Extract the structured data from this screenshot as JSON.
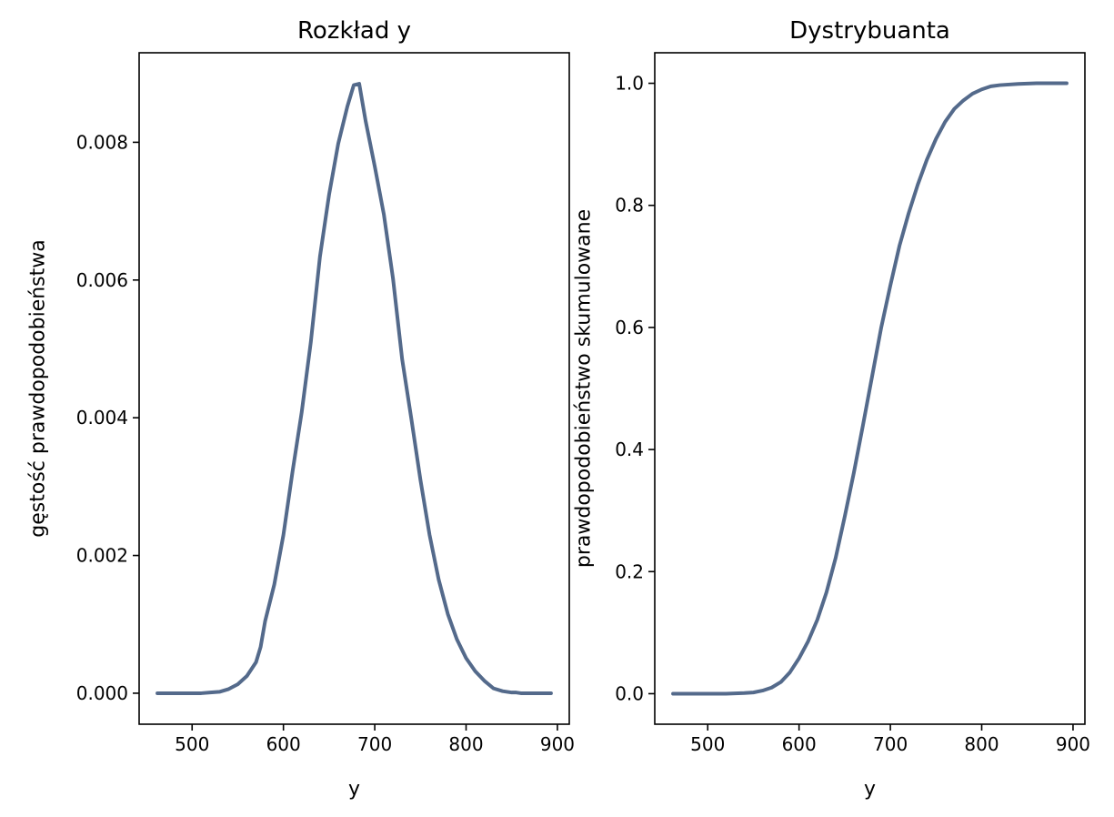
{
  "chart_data": [
    {
      "type": "line",
      "title": "Rozkład y",
      "xlabel": "y",
      "ylabel": "gęstość prawdopodobieństwa",
      "xlim": [
        442,
        913
      ],
      "ylim": [
        -0.00045,
        0.0093
      ],
      "xticks": [
        500,
        600,
        700,
        800,
        900
      ],
      "xtick_labels": [
        "500",
        "600",
        "700",
        "800",
        "900"
      ],
      "yticks": [
        0,
        0.002,
        0.004,
        0.006,
        0.008
      ],
      "ytick_labels": [
        "0.000",
        "0.002",
        "0.004",
        "0.006",
        "0.008"
      ],
      "grid": false,
      "line_color": "#546a8b",
      "x": [
        462,
        470,
        480,
        490,
        500,
        510,
        520,
        530,
        540,
        550,
        560,
        570,
        575,
        580,
        590,
        600,
        610,
        620,
        630,
        640,
        650,
        660,
        670,
        677,
        683,
        690,
        700,
        710,
        720,
        730,
        740,
        750,
        760,
        770,
        780,
        790,
        800,
        810,
        820,
        830,
        840,
        850,
        855,
        860,
        870,
        880,
        893
      ],
      "y": [
        0.0,
        0.0,
        0.0,
        0.0,
        0.0,
        0.0,
        1e-05,
        2e-05,
        6e-05,
        0.00013,
        0.00025,
        0.00045,
        0.00067,
        0.00105,
        0.00158,
        0.0023,
        0.00322,
        0.00408,
        0.0051,
        0.00634,
        0.00724,
        0.00798,
        0.00852,
        0.00883,
        0.00885,
        0.00831,
        0.00765,
        0.00695,
        0.00602,
        0.00485,
        0.00399,
        0.0031,
        0.0023,
        0.00165,
        0.00115,
        0.00078,
        0.00051,
        0.00032,
        0.00018,
        7e-05,
        3e-05,
        1e-05,
        1e-05,
        0.0,
        0.0,
        0.0,
        0.0
      ]
    },
    {
      "type": "line",
      "title": "Dystrybuanta",
      "xlabel": "y",
      "ylabel": "prawdopodobieństwo skumulowane",
      "xlim": [
        442,
        913
      ],
      "ylim": [
        -0.05,
        1.05
      ],
      "xticks": [
        500,
        600,
        700,
        800,
        900
      ],
      "xtick_labels": [
        "500",
        "600",
        "700",
        "800",
        "900"
      ],
      "yticks": [
        0,
        0.2,
        0.4,
        0.6,
        0.8,
        1.0
      ],
      "ytick_labels": [
        "0.0",
        "0.2",
        "0.4",
        "0.6",
        "0.8",
        "1.0"
      ],
      "grid": false,
      "line_color": "#546a8b",
      "x": [
        462,
        480,
        500,
        520,
        540,
        550,
        560,
        570,
        580,
        590,
        600,
        610,
        620,
        630,
        640,
        650,
        660,
        670,
        680,
        690,
        700,
        710,
        720,
        730,
        740,
        750,
        760,
        770,
        780,
        790,
        800,
        810,
        820,
        840,
        860,
        893
      ],
      "y": [
        0.0,
        0.0,
        0.0,
        0.0,
        0.001,
        0.002,
        0.005,
        0.01,
        0.019,
        0.035,
        0.058,
        0.086,
        0.121,
        0.166,
        0.222,
        0.29,
        0.362,
        0.44,
        0.52,
        0.6,
        0.669,
        0.734,
        0.787,
        0.834,
        0.875,
        0.909,
        0.937,
        0.958,
        0.972,
        0.983,
        0.99,
        0.995,
        0.997,
        0.999,
        1.0,
        1.0
      ]
    }
  ]
}
